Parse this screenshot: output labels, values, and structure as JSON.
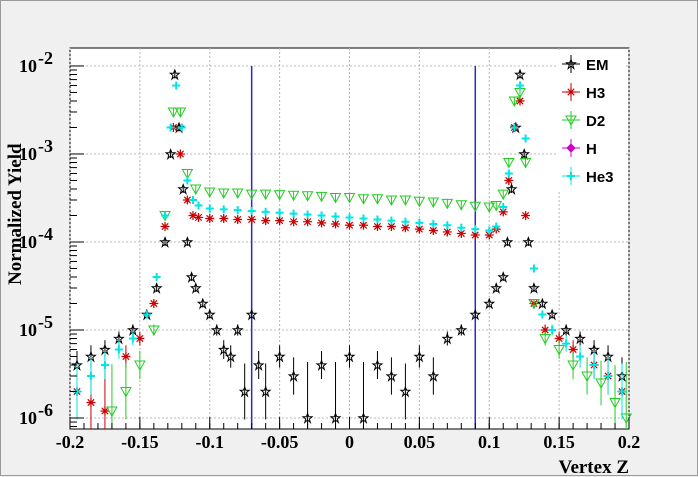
{
  "chart_data": {
    "type": "scatter",
    "title": "",
    "xlabel": "Vertex Z",
    "ylabel": "Normalized Yield",
    "xlim": [
      -0.2,
      0.2
    ],
    "ylim": [
      7.5e-07,
      0.016
    ],
    "log_y": true,
    "grid": true,
    "legend_position": "top-right",
    "x_ticks": [
      "-0.2",
      "-0.15",
      "-0.1",
      "-0.05",
      "0",
      "0.05",
      "0.1",
      "0.15",
      "0.2"
    ],
    "y_ticks": [
      {
        "mantissa": "10",
        "exponent": "-6",
        "value": 1e-06
      },
      {
        "mantissa": "10",
        "exponent": "-5",
        "value": 1e-05
      },
      {
        "mantissa": "10",
        "exponent": "-4",
        "value": 0.0001
      },
      {
        "mantissa": "10",
        "exponent": "-3",
        "value": 0.001
      },
      {
        "mantissa": "10",
        "exponent": "-2",
        "value": 0.01
      }
    ],
    "cut_lines_x": [
      -0.07,
      0.09
    ],
    "cut_line_top": 0.01,
    "series": [
      {
        "name": "EM",
        "color": "#000000",
        "marker": "open-star",
        "x": [
          -0.195,
          -0.185,
          -0.175,
          -0.165,
          -0.155,
          -0.145,
          -0.138,
          -0.132,
          -0.128,
          -0.125,
          -0.122,
          -0.119,
          -0.116,
          -0.113,
          -0.11,
          -0.105,
          -0.1,
          -0.095,
          -0.09,
          -0.085,
          -0.08,
          -0.075,
          -0.07,
          -0.065,
          -0.06,
          -0.05,
          -0.04,
          -0.03,
          -0.02,
          -0.01,
          0,
          0.01,
          0.02,
          0.03,
          0.04,
          0.05,
          0.06,
          0.07,
          0.08,
          0.09,
          0.1,
          0.105,
          0.11,
          0.113,
          0.116,
          0.119,
          0.122,
          0.125,
          0.128,
          0.132,
          0.138,
          0.145,
          0.155,
          0.165,
          0.175,
          0.185,
          0.195
        ],
        "y": [
          4e-06,
          5e-06,
          6e-06,
          8e-06,
          1e-05,
          1.5e-05,
          3e-05,
          0.0001,
          0.001,
          0.008,
          0.002,
          0.0004,
          0.0001,
          4e-05,
          3e-05,
          2e-05,
          1.5e-05,
          1e-05,
          6e-06,
          5e-06,
          1e-05,
          2e-06,
          1.5e-05,
          4e-06,
          2e-06,
          5e-06,
          3e-06,
          1e-06,
          4e-06,
          1e-06,
          5e-06,
          1e-06,
          4e-06,
          3e-06,
          2e-06,
          5e-06,
          3e-06,
          8e-06,
          1e-05,
          1.5e-05,
          2e-05,
          3e-05,
          4e-05,
          0.0001,
          0.0004,
          0.002,
          0.008,
          0.001,
          0.0001,
          3e-05,
          2e-05,
          1.5e-05,
          1e-05,
          8e-06,
          6e-06,
          5e-06,
          3e-06
        ]
      },
      {
        "name": "H3",
        "color": "#cc0000",
        "marker": "asterisk",
        "x": [
          -0.195,
          -0.185,
          -0.175,
          -0.16,
          -0.15,
          -0.14,
          -0.132,
          -0.126,
          -0.121,
          -0.116,
          -0.112,
          -0.108,
          -0.1,
          -0.09,
          -0.08,
          -0.07,
          -0.06,
          -0.05,
          -0.04,
          -0.03,
          -0.02,
          -0.01,
          0,
          0.01,
          0.02,
          0.03,
          0.04,
          0.05,
          0.06,
          0.07,
          0.08,
          0.09,
          0.1,
          0.105,
          0.11,
          0.114,
          0.118,
          0.122,
          0.126,
          0.132,
          0.14,
          0.15,
          0.16,
          0.175,
          0.185,
          0.195
        ],
        "y": [
          2e-06,
          1.5e-06,
          1.2e-06,
          5e-06,
          8e-06,
          2e-05,
          0.00015,
          0.002,
          0.001,
          0.0003,
          0.0002,
          0.00019,
          0.000185,
          0.000185,
          0.00018,
          0.00018,
          0.000175,
          0.000175,
          0.00017,
          0.00017,
          0.000165,
          0.00016,
          0.000155,
          0.000155,
          0.00015,
          0.00015,
          0.000145,
          0.00014,
          0.000135,
          0.00013,
          0.000125,
          0.00012,
          0.00012,
          0.00014,
          0.00022,
          0.0005,
          0.002,
          0.004,
          0.0002,
          2e-05,
          1e-05,
          8e-06,
          6e-06,
          4e-06,
          3e-06,
          2e-06
        ]
      },
      {
        "name": "D2",
        "color": "#22cc22",
        "marker": "open-triangle-down",
        "x": [
          -0.17,
          -0.16,
          -0.15,
          -0.14,
          -0.132,
          -0.126,
          -0.121,
          -0.116,
          -0.11,
          -0.1,
          -0.09,
          -0.08,
          -0.07,
          -0.06,
          -0.05,
          -0.04,
          -0.03,
          -0.02,
          -0.01,
          0,
          0.01,
          0.02,
          0.03,
          0.04,
          0.05,
          0.06,
          0.07,
          0.08,
          0.09,
          0.1,
          0.105,
          0.11,
          0.114,
          0.118,
          0.122,
          0.126,
          0.132,
          0.14,
          0.15,
          0.16,
          0.17,
          0.18,
          0.19,
          0.198
        ],
        "y": [
          1.2e-06,
          2e-06,
          4e-06,
          1e-05,
          0.0002,
          0.003,
          0.003,
          0.0006,
          0.0004,
          0.00037,
          0.00036,
          0.00036,
          0.00035,
          0.00035,
          0.000345,
          0.00034,
          0.000335,
          0.00033,
          0.00032,
          0.00032,
          0.00031,
          0.00031,
          0.0003,
          0.0003,
          0.00029,
          0.000285,
          0.000275,
          0.000265,
          0.000255,
          0.00025,
          0.00026,
          0.00035,
          0.0008,
          0.004,
          0.005,
          0.0008,
          2e-05,
          8e-06,
          6e-06,
          4e-06,
          3e-06,
          2.5e-06,
          1.5e-06,
          1e-06
        ]
      },
      {
        "name": "H",
        "color": "#cc00cc",
        "marker": "filled-diamond",
        "x": [],
        "y": []
      },
      {
        "name": "He3",
        "color": "#00e5e5",
        "marker": "plus",
        "x": [
          -0.195,
          -0.185,
          -0.175,
          -0.165,
          -0.155,
          -0.145,
          -0.138,
          -0.132,
          -0.128,
          -0.124,
          -0.12,
          -0.116,
          -0.112,
          -0.108,
          -0.1,
          -0.09,
          -0.08,
          -0.07,
          -0.06,
          -0.05,
          -0.04,
          -0.03,
          -0.02,
          -0.01,
          0,
          0.01,
          0.02,
          0.03,
          0.04,
          0.05,
          0.06,
          0.07,
          0.08,
          0.09,
          0.1,
          0.105,
          0.11,
          0.114,
          0.118,
          0.122,
          0.126,
          0.132,
          0.138,
          0.145,
          0.155,
          0.165,
          0.175,
          0.185,
          0.195
        ],
        "y": [
          2e-06,
          3e-06,
          4e-06,
          6e-06,
          8e-06,
          1.5e-05,
          4e-05,
          0.0002,
          0.002,
          0.006,
          0.002,
          0.0005,
          0.0003,
          0.00026,
          0.00024,
          0.000235,
          0.00023,
          0.000225,
          0.00022,
          0.000215,
          0.00021,
          0.000205,
          0.0002,
          0.000195,
          0.00019,
          0.000185,
          0.00018,
          0.000175,
          0.00017,
          0.000165,
          0.00016,
          0.000155,
          0.000145,
          0.00014,
          0.000135,
          0.00015,
          0.00025,
          0.0006,
          0.002,
          0.006,
          0.0015,
          5e-05,
          1.5e-05,
          1e-05,
          7e-06,
          5e-06,
          4e-06,
          3e-06,
          2e-06
        ]
      }
    ]
  }
}
